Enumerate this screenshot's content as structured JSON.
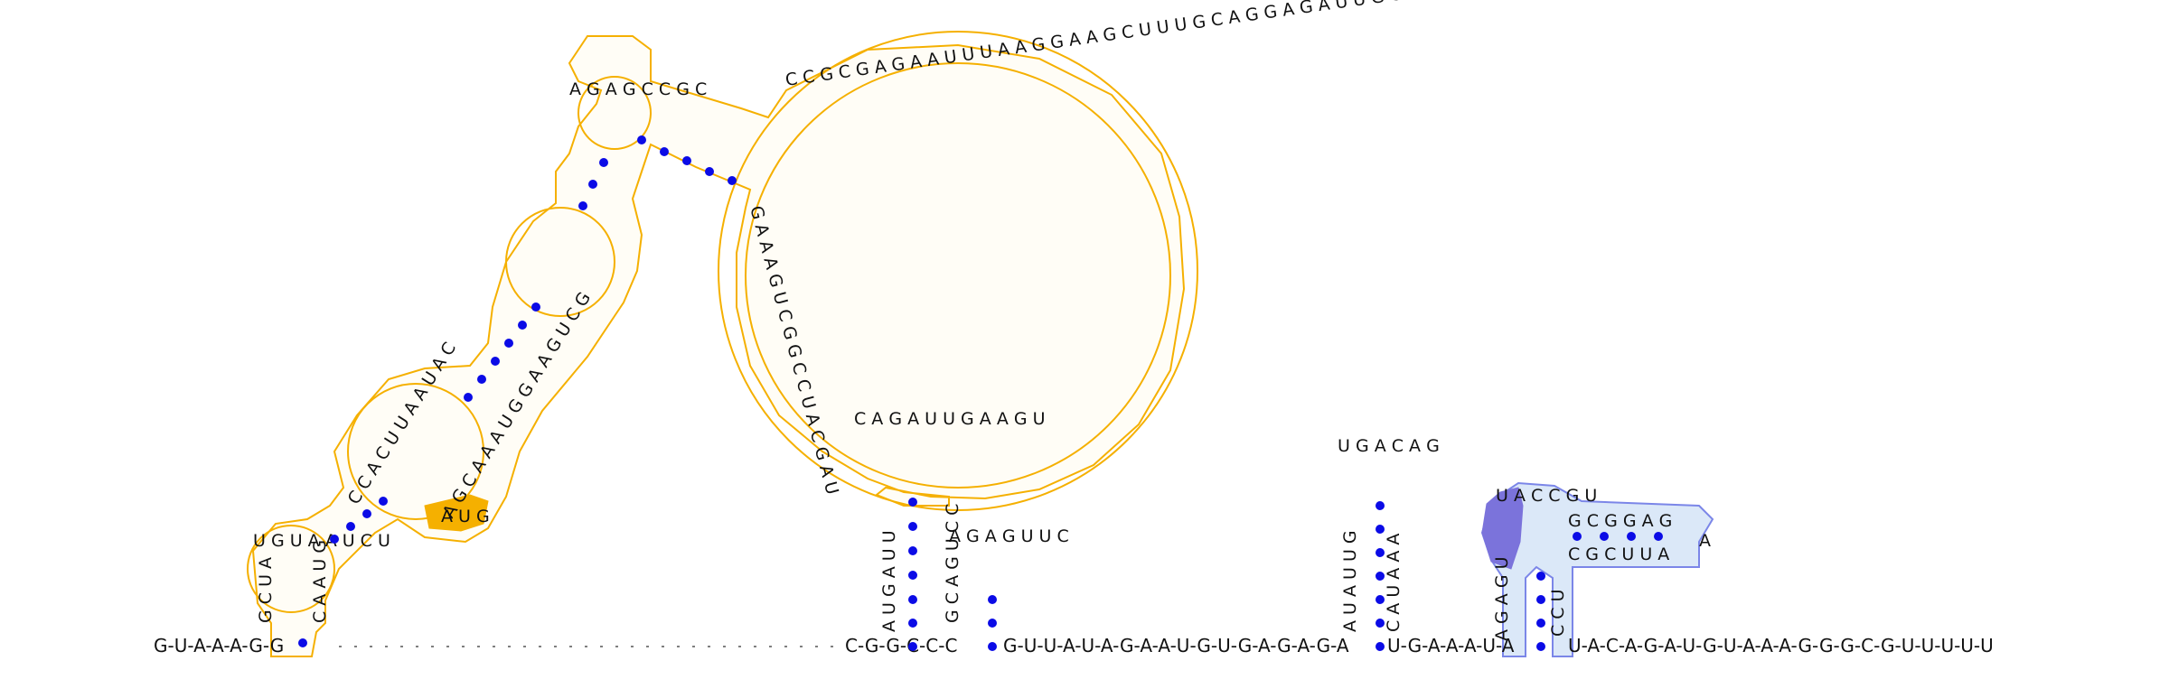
{
  "diagram": {
    "type": "rna-secondary-structure",
    "colors": {
      "base_text": "#111111",
      "pair_dot": "#0b0be6",
      "backbone": "#333333",
      "region1_outline": "#f5b000",
      "region1_fill": "#fffdf6",
      "region1_highlight": "#f5b000",
      "region2_outline": "#7b86e8",
      "region2_fill": "#dbe8f8",
      "region2_highlight": "#7b73db"
    },
    "sequences": {
      "five_prime_tail": "G-U-A-A-A-G-G",
      "three_prime_tail": "U-A-C-A-G-A-U-G-U-A-A-A-G-G-G-C-G-U-U-U-U-U",
      "baseline_segment_1": "C-G-G-C-C-C",
      "baseline_segment_2": "G-U-U-A-U-A-G-A-A-U-G-U-G-A-G-A-G-A",
      "baseline_segment_3": "U-G-A-A-A-U-A"
    },
    "structure_1": {
      "stem1_left": "G C U A",
      "stem1_right": "C A A U G",
      "hairpin1_loop": "U G U A A U C U",
      "terminal_hairpin_loop": "A G A G C C G C",
      "large_loop": "C C G C G A G A A U U U A A G G A A G C U U U G C A G G A G A U U G C C G A A A A G A G U",
      "large_loop_inner": "G A A A G U C G G C C U A C G A U",
      "mid_stem_left": "C C A C U U A A U A C",
      "mid_stem_right": "A G C A A A U G G A A G U C G",
      "highlight_region": "A U G"
    },
    "structure_2": {
      "hairpin_a_stem": "A U G A U U",
      "hairpin_a_loop": "C A G A U U G A A G U",
      "hairpin_b": "G C A G U C C",
      "hairpin_b_loop": "A G A G U U C"
    },
    "structure_3": {
      "hairpin_stem_left": "A U A U U G",
      "hairpin_loop": "U G A C A G",
      "hairpin_stem_right": "C A U A A A"
    },
    "structure_4": {
      "stem_left": "A G A G U",
      "loop": "U A C C G U",
      "stem_right_top": "G C G G A G",
      "stem_right_bottom": "C G C U U A",
      "tail": "A",
      "inner_stem": "C C U"
    }
  }
}
